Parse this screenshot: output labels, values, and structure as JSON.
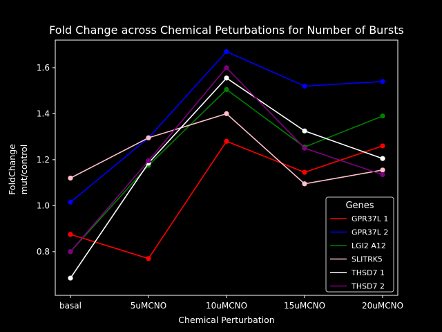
{
  "chart_data": {
    "type": "line",
    "title": "Fold Change across Chemical Peturbations for Number of Bursts",
    "xlabel": "Chemical Perturbation",
    "ylabel_lines": [
      "FoldChange",
      "mut/control"
    ],
    "categories": [
      "basal",
      "5uMCNO",
      "10uMCNO",
      "15uMCNO",
      "20uMCNO"
    ],
    "ylim": [
      0.61,
      1.72
    ],
    "yticks": [
      0.8,
      1.0,
      1.2,
      1.4,
      1.6
    ],
    "grid": false,
    "legend": {
      "title": "Genes",
      "placement": "lower-right"
    },
    "series": [
      {
        "name": "GPR37L 1",
        "color": "#ff0000",
        "values": [
          0.875,
          0.77,
          1.28,
          1.145,
          1.26
        ]
      },
      {
        "name": "GPR37L 2",
        "color": "#0000ff",
        "values": [
          1.015,
          1.295,
          1.67,
          1.52,
          1.54
        ]
      },
      {
        "name": "LGI2 A12",
        "color": "#008000",
        "values": [
          0.8,
          1.175,
          1.505,
          1.255,
          1.39
        ]
      },
      {
        "name": "SLITRK5",
        "color": "#ffc0cb",
        "values": [
          1.12,
          1.295,
          1.4,
          1.095,
          1.155
        ]
      },
      {
        "name": "THSD7 1",
        "color": "#ffffff",
        "values": [
          0.685,
          1.185,
          1.555,
          1.325,
          1.205
        ]
      },
      {
        "name": "THSD7 2",
        "color": "#800080",
        "values": [
          0.8,
          1.195,
          1.6,
          1.25,
          1.135
        ]
      }
    ]
  }
}
